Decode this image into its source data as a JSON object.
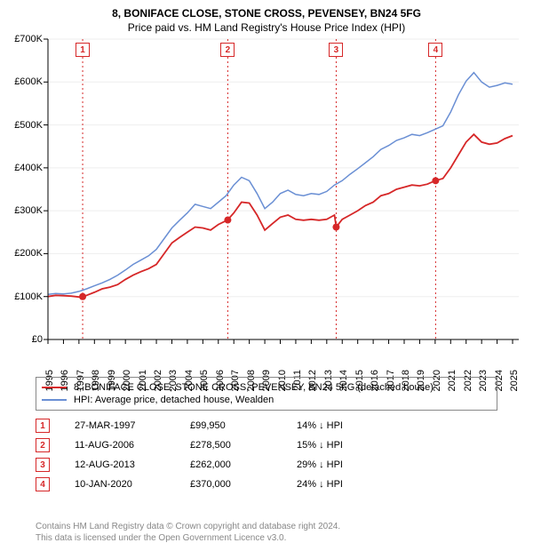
{
  "title_line1": "8, BONIFACE CLOSE, STONE CROSS, PEVENSEY, BN24 5FG",
  "title_line2": "Price paid vs. HM Land Registry's House Price Index (HPI)",
  "chart": {
    "type": "line",
    "background_color": "#ffffff",
    "x": {
      "min": 1995,
      "max": 2025.4,
      "ticks": [
        1995,
        1996,
        1997,
        1998,
        1999,
        2000,
        2001,
        2002,
        2003,
        2004,
        2005,
        2006,
        2007,
        2008,
        2009,
        2010,
        2011,
        2012,
        2013,
        2014,
        2015,
        2016,
        2017,
        2018,
        2019,
        2020,
        2021,
        2022,
        2023,
        2024,
        2025
      ]
    },
    "y": {
      "min": 0,
      "max": 700000,
      "tick_step": 100000,
      "tick_labels": [
        "£0",
        "£100K",
        "£200K",
        "£300K",
        "£400K",
        "£500K",
        "£600K",
        "£700K"
      ],
      "tick_label_fontsize": 11
    },
    "grid_color": "#e0e0e0",
    "series": [
      {
        "name": "price_paid",
        "label": "8, BONIFACE CLOSE, STONE CROSS, PEVENSEY, BN24 5FG (detached house)",
        "color": "#d62728",
        "line_width": 1.8,
        "data": [
          [
            1995.0,
            100000
          ],
          [
            1995.5,
            103000
          ],
          [
            1996.0,
            102000
          ],
          [
            1996.5,
            101000
          ],
          [
            1997.0,
            99000
          ],
          [
            1997.24,
            99950
          ],
          [
            1997.5,
            103000
          ],
          [
            1998.0,
            110000
          ],
          [
            1998.5,
            118000
          ],
          [
            1999.0,
            122000
          ],
          [
            1999.5,
            128000
          ],
          [
            2000.0,
            140000
          ],
          [
            2000.5,
            150000
          ],
          [
            2001.0,
            158000
          ],
          [
            2001.5,
            165000
          ],
          [
            2002.0,
            175000
          ],
          [
            2002.5,
            200000
          ],
          [
            2003.0,
            225000
          ],
          [
            2003.5,
            238000
          ],
          [
            2004.0,
            250000
          ],
          [
            2004.5,
            262000
          ],
          [
            2005.0,
            260000
          ],
          [
            2005.5,
            255000
          ],
          [
            2006.0,
            268000
          ],
          [
            2006.6,
            278500
          ],
          [
            2007.0,
            295000
          ],
          [
            2007.5,
            320000
          ],
          [
            2008.0,
            318000
          ],
          [
            2008.5,
            290000
          ],
          [
            2009.0,
            255000
          ],
          [
            2009.5,
            270000
          ],
          [
            2010.0,
            285000
          ],
          [
            2010.5,
            290000
          ],
          [
            2011.0,
            280000
          ],
          [
            2011.5,
            278000
          ],
          [
            2012.0,
            280000
          ],
          [
            2012.5,
            278000
          ],
          [
            2013.0,
            280000
          ],
          [
            2013.5,
            290000
          ],
          [
            2013.61,
            262000
          ],
          [
            2014.0,
            280000
          ],
          [
            2014.5,
            290000
          ],
          [
            2015.0,
            300000
          ],
          [
            2015.5,
            312000
          ],
          [
            2016.0,
            320000
          ],
          [
            2016.5,
            335000
          ],
          [
            2017.0,
            340000
          ],
          [
            2017.5,
            350000
          ],
          [
            2018.0,
            355000
          ],
          [
            2018.5,
            360000
          ],
          [
            2019.0,
            358000
          ],
          [
            2019.5,
            362000
          ],
          [
            2020.0,
            370000
          ],
          [
            2020.5,
            375000
          ],
          [
            2021.0,
            400000
          ],
          [
            2021.5,
            430000
          ],
          [
            2022.0,
            460000
          ],
          [
            2022.5,
            478000
          ],
          [
            2023.0,
            460000
          ],
          [
            2023.5,
            455000
          ],
          [
            2024.0,
            458000
          ],
          [
            2024.5,
            468000
          ],
          [
            2025.0,
            475000
          ]
        ]
      },
      {
        "name": "hpi",
        "label": "HPI: Average price, detached house, Wealden",
        "color": "#6a8fd4",
        "line_width": 1.5,
        "data": [
          [
            1995.0,
            105000
          ],
          [
            1995.5,
            107000
          ],
          [
            1996.0,
            106000
          ],
          [
            1996.5,
            108000
          ],
          [
            1997.0,
            112000
          ],
          [
            1997.5,
            118000
          ],
          [
            1998.0,
            125000
          ],
          [
            1998.5,
            132000
          ],
          [
            1999.0,
            140000
          ],
          [
            1999.5,
            150000
          ],
          [
            2000.0,
            162000
          ],
          [
            2000.5,
            175000
          ],
          [
            2001.0,
            185000
          ],
          [
            2001.5,
            195000
          ],
          [
            2002.0,
            210000
          ],
          [
            2002.5,
            235000
          ],
          [
            2003.0,
            260000
          ],
          [
            2003.5,
            278000
          ],
          [
            2004.0,
            295000
          ],
          [
            2004.5,
            315000
          ],
          [
            2005.0,
            310000
          ],
          [
            2005.5,
            305000
          ],
          [
            2006.0,
            320000
          ],
          [
            2006.5,
            335000
          ],
          [
            2007.0,
            360000
          ],
          [
            2007.5,
            378000
          ],
          [
            2008.0,
            370000
          ],
          [
            2008.5,
            340000
          ],
          [
            2009.0,
            305000
          ],
          [
            2009.5,
            320000
          ],
          [
            2010.0,
            340000
          ],
          [
            2010.5,
            348000
          ],
          [
            2011.0,
            338000
          ],
          [
            2011.5,
            335000
          ],
          [
            2012.0,
            340000
          ],
          [
            2012.5,
            338000
          ],
          [
            2013.0,
            345000
          ],
          [
            2013.5,
            360000
          ],
          [
            2014.0,
            370000
          ],
          [
            2014.5,
            385000
          ],
          [
            2015.0,
            398000
          ],
          [
            2015.5,
            412000
          ],
          [
            2016.0,
            426000
          ],
          [
            2016.5,
            443000
          ],
          [
            2017.0,
            452000
          ],
          [
            2017.5,
            464000
          ],
          [
            2018.0,
            470000
          ],
          [
            2018.5,
            478000
          ],
          [
            2019.0,
            475000
          ],
          [
            2019.5,
            482000
          ],
          [
            2020.0,
            490000
          ],
          [
            2020.5,
            498000
          ],
          [
            2021.0,
            530000
          ],
          [
            2021.5,
            570000
          ],
          [
            2022.0,
            602000
          ],
          [
            2022.5,
            622000
          ],
          [
            2023.0,
            600000
          ],
          [
            2023.5,
            588000
          ],
          [
            2024.0,
            592000
          ],
          [
            2024.5,
            598000
          ],
          [
            2025.0,
            595000
          ]
        ]
      }
    ],
    "events": [
      {
        "n": "1",
        "date_frac": 1997.24,
        "value": 99950,
        "color": "#d62728"
      },
      {
        "n": "2",
        "date_frac": 2006.61,
        "value": 278500,
        "color": "#d62728"
      },
      {
        "n": "3",
        "date_frac": 2013.61,
        "value": 262000,
        "color": "#d62728"
      },
      {
        "n": "4",
        "date_frac": 2020.03,
        "value": 370000,
        "color": "#d62728"
      }
    ],
    "event_vline_color": "#d62728",
    "event_vline_dash": "2,3"
  },
  "legend": {
    "border_color": "#888888",
    "fontsize": 11,
    "items": [
      {
        "color": "#d62728",
        "text": "8, BONIFACE CLOSE, STONE CROSS, PEVENSEY, BN24 5FG (detached house)"
      },
      {
        "color": "#6a8fd4",
        "text": "HPI: Average price, detached house, Wealden"
      }
    ]
  },
  "marker_table": {
    "rows": [
      {
        "n": "1",
        "date": "27-MAR-1997",
        "price": "£99,950",
        "pct": "14%",
        "arrow": "↓",
        "suffix": "HPI",
        "color": "#d62728"
      },
      {
        "n": "2",
        "date": "11-AUG-2006",
        "price": "£278,500",
        "pct": "15%",
        "arrow": "↓",
        "suffix": "HPI",
        "color": "#d62728"
      },
      {
        "n": "3",
        "date": "12-AUG-2013",
        "price": "£262,000",
        "pct": "29%",
        "arrow": "↓",
        "suffix": "HPI",
        "color": "#d62728"
      },
      {
        "n": "4",
        "date": "10-JAN-2020",
        "price": "£370,000",
        "pct": "24%",
        "arrow": "↓",
        "suffix": "HPI",
        "color": "#d62728"
      }
    ]
  },
  "footer": {
    "line1": "Contains HM Land Registry data © Crown copyright and database right 2024.",
    "line2": "This data is licensed under the Open Government Licence v3.0.",
    "color": "#888888",
    "fontsize": 10
  }
}
